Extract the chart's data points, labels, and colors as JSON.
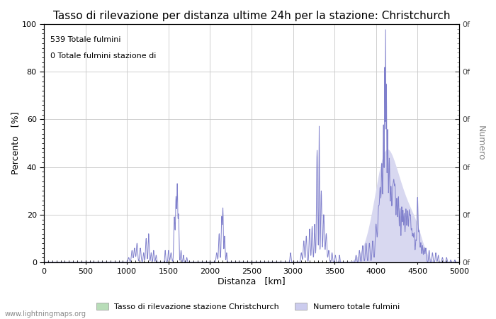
{
  "title": "Tasso di rilevazione per distanza ultime 24h per la stazione: Christchurch",
  "xlabel": "Distanza   [km]",
  "ylabel_left": "Percento   [%]",
  "ylabel_right": "Numero",
  "annotation_line1": "539 Totale fulmini",
  "annotation_line2": "0 Totale fulmini stazione di",
  "xlim": [
    0,
    5000
  ],
  "ylim": [
    0,
    100
  ],
  "x_ticks": [
    0,
    500,
    1000,
    1500,
    2000,
    2500,
    3000,
    3500,
    4000,
    4500,
    5000
  ],
  "y_ticks_left": [
    0,
    20,
    40,
    60,
    80,
    100
  ],
  "bg_color": "#ffffff",
  "plot_bg_color": "#ffffff",
  "grid_color": "#c8c8c8",
  "line_color": "#8080cc",
  "fill_color": "#d8d8f0",
  "legend_label1": "Tasso di rilevazione stazione Christchurch",
  "legend_label2": "Numero totale fulmini",
  "legend_color1": "#b8ddb8",
  "legend_color2": "#ccccee",
  "watermark": "www.lightningmaps.org",
  "title_fontsize": 11,
  "axis_fontsize": 9,
  "tick_fontsize": 8
}
